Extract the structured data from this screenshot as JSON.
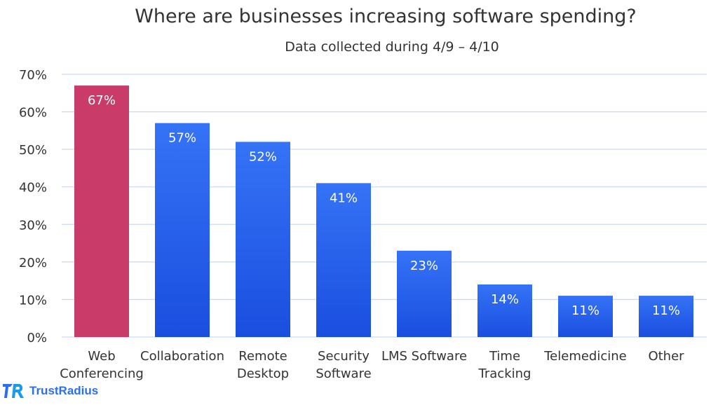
{
  "chart_data": {
    "type": "bar",
    "title": "Where are businesses increasing software spending?",
    "subtitle": "Data collected during 4/9 – 4/10",
    "categories": [
      "Web\nConferencing",
      "Collaboration",
      "Remote\nDesktop",
      "Security\nSoftware",
      "LMS Software",
      "Time\nTracking",
      "Telemedicine",
      "Other"
    ],
    "values": [
      67,
      57,
      52,
      41,
      23,
      14,
      11,
      11
    ],
    "data_labels": [
      "67%",
      "57%",
      "52%",
      "41%",
      "23%",
      "14%",
      "11%",
      "11%"
    ],
    "yticks": [
      "0%",
      "10%",
      "20%",
      "30%",
      "40%",
      "50%",
      "60%",
      "70%"
    ],
    "ylim": [
      0,
      70
    ],
    "grid": true,
    "colors": {
      "highlight": "#C93C6A",
      "bar_top": "#3573F6",
      "bar_bottom": "#1A4EDF",
      "grid": "#C9D9F8"
    }
  },
  "brand": {
    "name": "TrustRadius",
    "color": "#2B6FF0"
  }
}
